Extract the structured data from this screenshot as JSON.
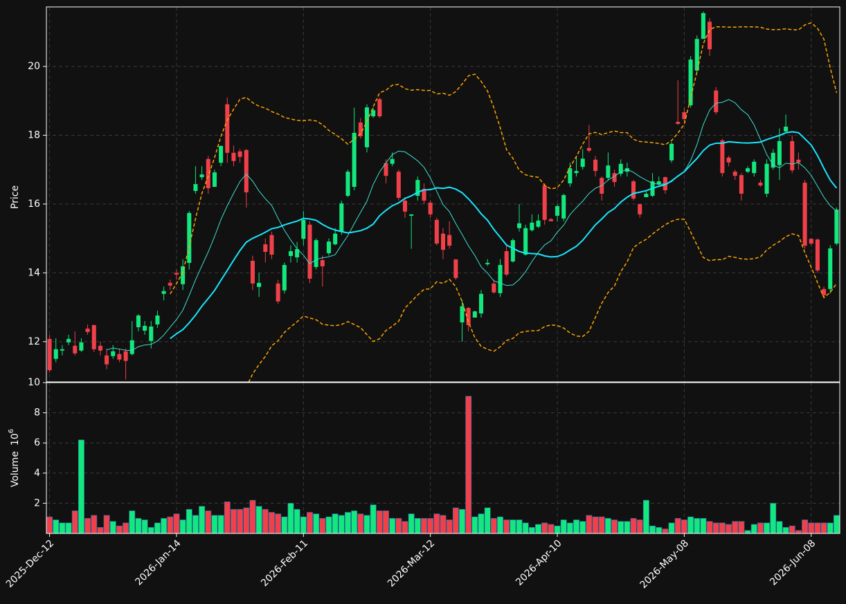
{
  "chart_data": {
    "type": "candlestick",
    "ylabel": "Price",
    "volume_label": {
      "name": "Volume",
      "base": "10",
      "exponent": "6"
    },
    "categories": [
      "2025-Dec-12",
      null,
      null,
      null,
      null,
      null,
      null,
      null,
      null,
      null,
      null,
      null,
      null,
      null,
      null,
      null,
      null,
      null,
      null,
      null,
      "2026-Jan-14",
      null,
      null,
      null,
      null,
      null,
      null,
      null,
      null,
      null,
      null,
      null,
      null,
      null,
      null,
      null,
      null,
      null,
      null,
      null,
      "2026-Feb-11",
      null,
      null,
      null,
      null,
      null,
      null,
      null,
      null,
      null,
      null,
      null,
      null,
      null,
      null,
      null,
      null,
      null,
      null,
      null,
      "2026-Mar-12",
      null,
      null,
      null,
      null,
      null,
      null,
      null,
      null,
      null,
      null,
      null,
      null,
      null,
      null,
      null,
      null,
      null,
      null,
      null,
      "2026-Apr-10",
      null,
      null,
      null,
      null,
      null,
      null,
      null,
      null,
      null,
      null,
      null,
      null,
      null,
      null,
      null,
      null,
      null,
      null,
      null,
      "2026-May-08",
      null,
      null,
      null,
      null,
      null,
      null,
      null,
      null,
      null,
      null,
      null,
      null,
      null,
      null,
      null,
      null,
      null,
      null,
      null,
      "2026-Jun-08",
      null,
      null,
      null,
      null
    ],
    "open": [
      12.08,
      11.5,
      11.74,
      11.98,
      11.88,
      11.74,
      12.38,
      12.48,
      11.88,
      11.6,
      11.58,
      11.64,
      11.72,
      11.64,
      12.42,
      12.32,
      12.02,
      12.5,
      13.39,
      13.71,
      14.0,
      13.67,
      14.29,
      16.38,
      16.78,
      17.31,
      16.5,
      17.2,
      18.9,
      17.49,
      17.53,
      17.57,
      14.35,
      13.59,
      14.83,
      15.1,
      13.69,
      13.49,
      14.49,
      14.45,
      14.99,
      15.4,
      14.17,
      14.37,
      14.57,
      14.83,
      15.2,
      16.24,
      16.5,
      18.37,
      17.65,
      18.55,
      19.05,
      17.19,
      17.17,
      16.94,
      16.1,
      15.66,
      16.24,
      16.44,
      16.04,
      15.54,
      15.14,
      15.1,
      14.39,
      12.56,
      12.98,
      12.7,
      12.82,
      14.25,
      13.69,
      13.41,
      14.63,
      14.33,
      15.3,
      14.53,
      15.24,
      15.34,
      16.54,
      15.56,
      15.66,
      15.58,
      16.6,
      16.9,
      17.08,
      17.63,
      17.29,
      16.76,
      16.76,
      16.9,
      16.88,
      16.94,
      16.66,
      16.0,
      16.2,
      16.24,
      16.58,
      16.78,
      17.27,
      18.39,
      18.67,
      18.87,
      19.88,
      20.8,
      21.3,
      19.3,
      17.85,
      17.35,
      16.94,
      16.84,
      16.94,
      16.9,
      16.62,
      16.3,
      17.06,
      17.13,
      18.11,
      17.83,
      17.29,
      16.62,
      14.99,
      14.97,
      13.53,
      13.53,
      14.85
    ],
    "high": [
      12.2,
      12.1,
      11.9,
      12.2,
      12.3,
      12.1,
      12.5,
      12.5,
      12.0,
      11.8,
      11.9,
      11.8,
      11.8,
      12.6,
      12.8,
      12.6,
      12.6,
      12.9,
      13.6,
      13.8,
      14.1,
      14.4,
      15.8,
      17.1,
      17.1,
      17.4,
      17.0,
      17.7,
      19.1,
      17.7,
      17.6,
      17.6,
      14.5,
      14.0,
      15.0,
      15.2,
      13.8,
      14.3,
      14.8,
      14.9,
      15.8,
      15.5,
      15.0,
      14.5,
      15.0,
      15.3,
      16.1,
      17.0,
      18.8,
      18.5,
      18.9,
      18.8,
      19.1,
      17.3,
      17.5,
      17.0,
      16.2,
      15.7,
      16.8,
      16.6,
      16.1,
      15.6,
      15.3,
      15.5,
      14.4,
      13.2,
      13.0,
      12.9,
      13.5,
      14.4,
      13.8,
      14.4,
      14.8,
      15.0,
      16.0,
      15.4,
      15.7,
      15.7,
      16.6,
      15.6,
      16.0,
      16.3,
      17.2,
      17.4,
      17.6,
      18.3,
      17.4,
      16.8,
      17.5,
      17.0,
      17.3,
      17.2,
      16.7,
      16.0,
      16.4,
      16.9,
      16.8,
      16.8,
      17.8,
      19.6,
      18.8,
      20.3,
      20.9,
      21.6,
      21.4,
      19.4,
      17.9,
      17.4,
      17.0,
      16.9,
      17.1,
      17.3,
      16.7,
      17.3,
      17.6,
      18.2,
      18.6,
      18.0,
      17.5,
      16.7,
      15.0,
      15.0,
      13.6,
      14.8,
      15.9
    ],
    "low": [
      11.1,
      11.4,
      11.6,
      11.9,
      11.6,
      11.7,
      12.2,
      11.7,
      11.6,
      11.2,
      11.5,
      11.4,
      10.9,
      11.6,
      12.3,
      12.2,
      11.8,
      12.4,
      13.2,
      13.5,
      13.8,
      13.5,
      14.1,
      16.3,
      16.7,
      16.3,
      16.5,
      17.1,
      17.2,
      17.1,
      17.2,
      15.9,
      13.5,
      13.3,
      14.3,
      14.4,
      13.1,
      13.4,
      14.3,
      14.3,
      14.8,
      13.7,
      14.1,
      13.6,
      14.5,
      14.8,
      15.1,
      16.2,
      16.4,
      17.9,
      17.5,
      18.5,
      18.5,
      16.6,
      17.1,
      16.1,
      15.6,
      14.7,
      16.1,
      16.0,
      15.6,
      14.8,
      14.4,
      14.7,
      13.8,
      12.0,
      12.3,
      12.7,
      12.7,
      14.2,
      13.4,
      13.3,
      13.9,
      14.3,
      15.2,
      14.5,
      15.2,
      15.3,
      15.4,
      15.5,
      15.5,
      15.5,
      16.5,
      16.8,
      17.0,
      17.5,
      16.8,
      16.1,
      16.7,
      16.5,
      16.8,
      16.8,
      16.1,
      15.6,
      16.2,
      16.2,
      16.5,
      16.3,
      17.2,
      18.3,
      18.4,
      18.8,
      19.8,
      20.8,
      20.3,
      18.6,
      16.8,
      17.1,
      16.7,
      16.1,
      16.9,
      16.8,
      16.5,
      16.2,
      17.0,
      16.7,
      18.1,
      16.9,
      17.0,
      14.7,
      14.8,
      14.0,
      13.3,
      13.4,
      14.8
    ],
    "close": [
      11.17,
      11.78,
      11.78,
      12.08,
      11.66,
      11.98,
      12.28,
      11.78,
      11.74,
      11.34,
      11.72,
      11.48,
      11.44,
      12.04,
      12.76,
      12.46,
      12.44,
      12.76,
      13.47,
      13.63,
      13.95,
      14.19,
      15.74,
      16.58,
      16.86,
      16.46,
      16.92,
      17.69,
      17.49,
      17.25,
      17.37,
      16.34,
      13.69,
      13.71,
      14.61,
      14.53,
      13.17,
      14.23,
      14.63,
      14.69,
      15.54,
      13.83,
      14.95,
      14.19,
      14.91,
      15.14,
      16.02,
      16.94,
      18.07,
      17.97,
      18.81,
      18.73,
      18.55,
      16.82,
      17.31,
      16.18,
      15.78,
      15.7,
      16.7,
      16.1,
      15.7,
      14.85,
      14.67,
      14.79,
      13.85,
      13.03,
      12.48,
      12.88,
      13.39,
      14.29,
      13.43,
      14.23,
      13.95,
      14.95,
      15.44,
      15.3,
      15.46,
      15.52,
      15.54,
      15.5,
      15.94,
      16.26,
      17.04,
      16.96,
      17.32,
      17.55,
      16.96,
      16.3,
      17.12,
      16.64,
      17.17,
      17.04,
      16.16,
      15.7,
      16.3,
      16.66,
      16.66,
      16.4,
      17.75,
      18.33,
      18.47,
      20.2,
      20.8,
      21.55,
      20.5,
      18.67,
      16.9,
      17.21,
      16.82,
      16.3,
      17.04,
      17.23,
      16.54,
      17.17,
      17.49,
      17.83,
      18.25,
      16.98,
      17.21,
      14.79,
      14.85,
      14.07,
      13.35,
      14.71,
      15.84
    ],
    "volume": [
      1.1,
      0.9,
      0.7,
      0.7,
      1.5,
      6.2,
      1.0,
      1.2,
      0.4,
      1.2,
      0.8,
      0.5,
      0.7,
      1.5,
      1.0,
      0.9,
      0.4,
      0.7,
      1.0,
      1.1,
      1.3,
      0.9,
      1.6,
      1.2,
      1.8,
      1.5,
      1.2,
      1.2,
      2.1,
      1.6,
      1.6,
      1.7,
      2.2,
      1.8,
      1.6,
      1.4,
      1.3,
      1.1,
      2.0,
      1.6,
      1.1,
      1.4,
      1.3,
      1.0,
      1.1,
      1.3,
      1.2,
      1.4,
      1.5,
      1.3,
      1.2,
      1.9,
      1.5,
      1.5,
      1.0,
      1.0,
      0.8,
      1.3,
      1.0,
      1.0,
      1.0,
      1.3,
      1.2,
      0.9,
      1.7,
      1.6,
      9.1,
      1.1,
      1.3,
      1.7,
      1.0,
      1.1,
      0.9,
      0.9,
      0.9,
      0.7,
      0.4,
      0.6,
      0.7,
      0.6,
      0.5,
      0.9,
      0.7,
      0.9,
      0.8,
      1.2,
      1.1,
      1.1,
      1.0,
      0.9,
      0.8,
      0.8,
      1.0,
      0.9,
      2.2,
      0.5,
      0.4,
      0.3,
      0.7,
      1.0,
      0.9,
      1.1,
      1.0,
      1.0,
      0.8,
      0.7,
      0.7,
      0.6,
      0.8,
      0.8,
      0.2,
      0.6,
      0.7,
      0.7,
      2.0,
      0.8,
      0.4,
      0.5,
      0.2,
      0.9,
      0.7,
      0.7,
      0.7,
      0.7,
      1.2
    ],
    "up_color": "#12e87e",
    "down_color": "#f0404a",
    "moving_averages": [
      {
        "window": 10,
        "color": "#3fe0d0",
        "width": 1
      },
      {
        "window": 20,
        "color": "#19e6ff",
        "width": 2
      }
    ],
    "bollinger": {
      "window": 20,
      "std": 2,
      "color": "#ffa500"
    },
    "ylim": [
      10.83,
      21.73
    ],
    "yticks": [
      12,
      14,
      16,
      18,
      20
    ],
    "volume_ylim": [
      0,
      10
    ],
    "volume_yticks": [
      2,
      4,
      6,
      8,
      10
    ],
    "grid": true
  }
}
